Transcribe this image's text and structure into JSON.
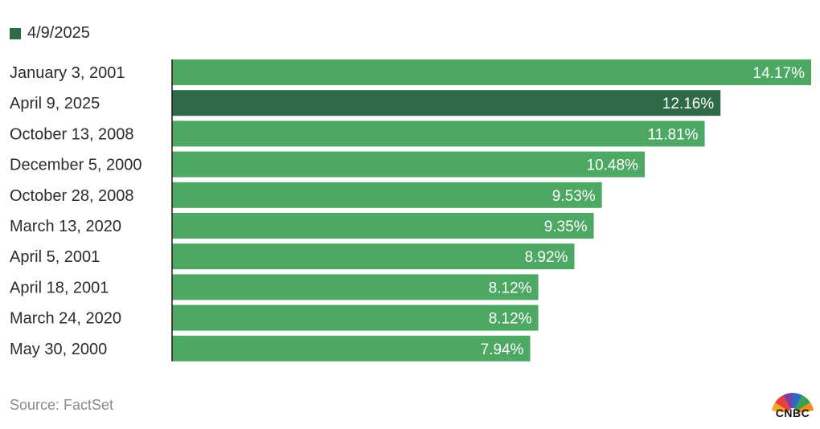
{
  "legend": {
    "label": "4/9/2025",
    "color": "#2d6a45"
  },
  "colors": {
    "bar": "#4ca862",
    "highlight": "#2d6a45",
    "value_text": "#ffffff",
    "axis": "#1a1a1a"
  },
  "chart_data": {
    "type": "bar",
    "orientation": "horizontal",
    "title": "",
    "xlabel": "",
    "ylabel": "",
    "categories": [
      "January 3, 2001",
      "April 9, 2025",
      "October 13, 2008",
      "December 5, 2000",
      "October 28, 2008",
      "March 13, 2020",
      "April 5, 2001",
      "April 18, 2001",
      "March 24, 2020",
      "May 30, 2000"
    ],
    "values": [
      14.17,
      12.16,
      11.81,
      10.48,
      9.53,
      9.35,
      8.92,
      8.12,
      8.12,
      7.94
    ],
    "value_labels": [
      "14.17%",
      "12.16%",
      "11.81%",
      "10.48%",
      "9.53%",
      "9.35%",
      "8.92%",
      "8.12%",
      "8.12%",
      "7.94%"
    ],
    "highlight": "April 9, 2025",
    "xlim": [
      0,
      14.17
    ]
  },
  "footer": {
    "source": "Source: FactSet"
  },
  "logo": {
    "text": "CNBC"
  }
}
